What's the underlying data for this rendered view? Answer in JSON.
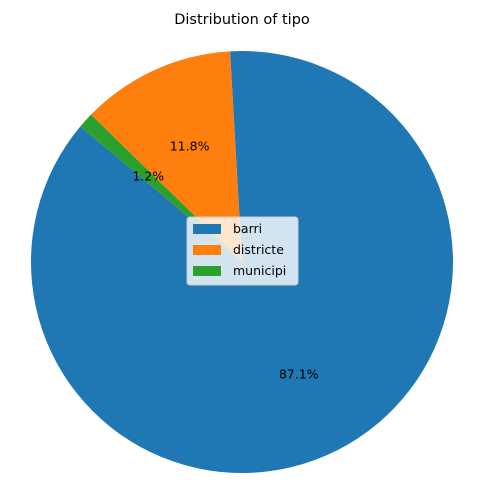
{
  "chart_data": {
    "type": "pie",
    "title": "Distribution of tipo",
    "categories": [
      "barri",
      "districte",
      "municipi"
    ],
    "values": [
      87.1,
      11.8,
      1.2
    ],
    "value_labels": [
      "87.1%",
      "11.8%",
      "1.2%"
    ],
    "colors": [
      "#1f77b4",
      "#ff7f0e",
      "#2ca02c"
    ],
    "start_angle_deg": 140,
    "direction": "counterclockwise",
    "legend_placement": "center"
  }
}
